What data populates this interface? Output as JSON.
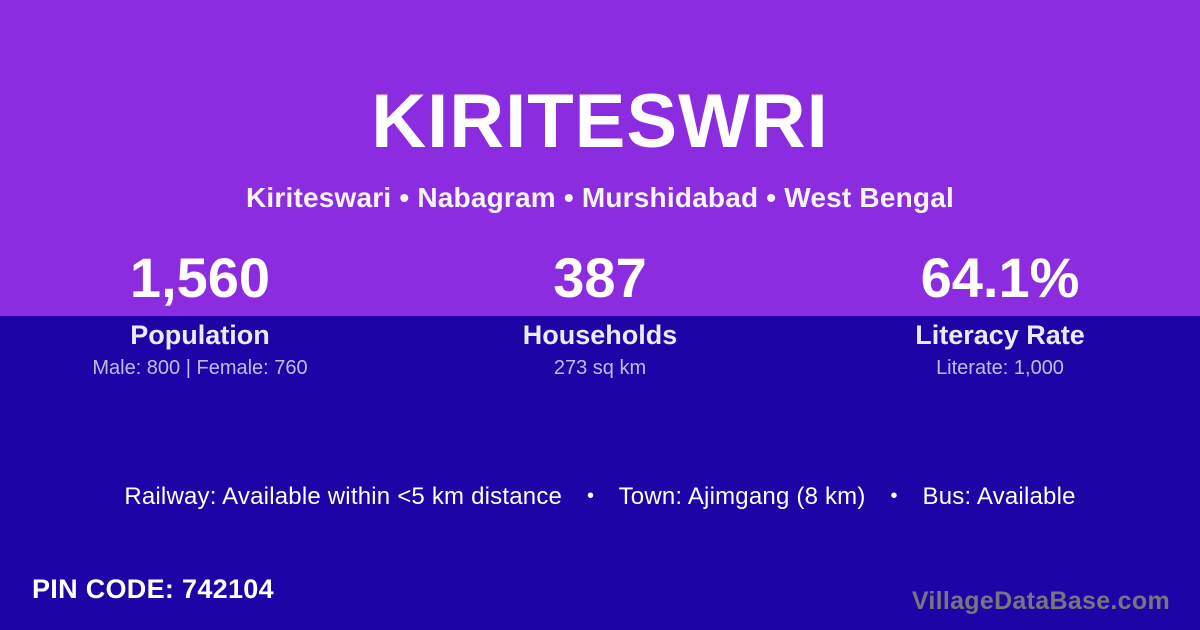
{
  "colors": {
    "top_background": "#8C2CE0",
    "bottom_background": "#1D04A6",
    "text_primary": "#FFFFFF",
    "text_muted": "rgba(255,255,255,0.72)",
    "watermark_grey": "#77767F"
  },
  "header": {
    "title": "KIRITESWRI",
    "subtitle": "Kiriteswari • Nabagram • Murshidabad • West Bengal"
  },
  "stats": [
    {
      "value": "1,560",
      "label": "Population",
      "detail": "Male: 800 | Female: 760"
    },
    {
      "value": "387",
      "label": "Households",
      "detail": "273 sq km"
    },
    {
      "value": "64.1%",
      "label": "Literacy Rate",
      "detail": "Literate: 1,000"
    }
  ],
  "amenities": {
    "separator": "•",
    "items": [
      "Railway: Available within <5 km distance",
      "Town: Ajimgang (8 km)",
      "Bus: Available"
    ]
  },
  "footer": {
    "pin_code": "PIN CODE: 742104",
    "watermark": "VillageDataBase.com"
  }
}
